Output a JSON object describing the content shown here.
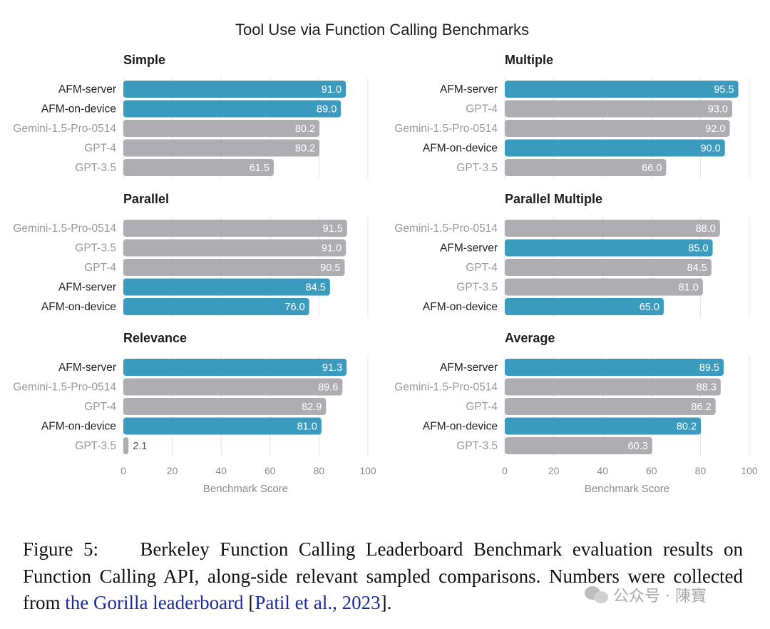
{
  "title": "Tool Use via Function Calling Benchmarks",
  "colors": {
    "afm": "#3b9bbf",
    "other": "#aeadb2",
    "grid": "#e4e4e6",
    "other_text": "#9a9a9e",
    "afm_text": "#222222"
  },
  "chart_data": [
    {
      "type": "bar",
      "orientation": "horizontal",
      "title": "Simple",
      "categories": [
        "AFM-server",
        "AFM-on-device",
        "Gemini-1.5-Pro-0514",
        "GPT-4",
        "GPT-3.5"
      ],
      "values": [
        91.0,
        89.0,
        80.2,
        80.2,
        61.5
      ],
      "value_labels": [
        "91.0",
        "89.0",
        "80.2",
        "80.2",
        "61.5"
      ],
      "highlight": [
        true,
        true,
        false,
        false,
        false
      ],
      "xlim": [
        0,
        100
      ],
      "xlabel": ""
    },
    {
      "type": "bar",
      "orientation": "horizontal",
      "title": "Multiple",
      "categories": [
        "AFM-server",
        "GPT-4",
        "Gemini-1.5-Pro-0514",
        "AFM-on-device",
        "GPT-3.5"
      ],
      "values": [
        95.5,
        93.0,
        92.0,
        90.0,
        66.0
      ],
      "value_labels": [
        "95.5",
        "93.0",
        "92.0",
        "90.0",
        "66.0"
      ],
      "highlight": [
        true,
        false,
        false,
        true,
        false
      ],
      "xlim": [
        0,
        100
      ],
      "xlabel": ""
    },
    {
      "type": "bar",
      "orientation": "horizontal",
      "title": "Parallel",
      "categories": [
        "Gemini-1.5-Pro-0514",
        "GPT-3.5",
        "GPT-4",
        "AFM-server",
        "AFM-on-device"
      ],
      "values": [
        91.5,
        91.0,
        90.5,
        84.5,
        76.0
      ],
      "value_labels": [
        "91.5",
        "91.0",
        "90.5",
        "84.5",
        "76.0"
      ],
      "highlight": [
        false,
        false,
        false,
        true,
        true
      ],
      "xlim": [
        0,
        100
      ],
      "xlabel": ""
    },
    {
      "type": "bar",
      "orientation": "horizontal",
      "title": "Parallel Multiple",
      "categories": [
        "Gemini-1.5-Pro-0514",
        "AFM-server",
        "GPT-4",
        "GPT-3.5",
        "AFM-on-device"
      ],
      "values": [
        88.0,
        85.0,
        84.5,
        81.0,
        65.0
      ],
      "value_labels": [
        "88.0",
        "85.0",
        "84.5",
        "81.0",
        "65.0"
      ],
      "highlight": [
        false,
        true,
        false,
        false,
        true
      ],
      "xlim": [
        0,
        100
      ],
      "xlabel": ""
    },
    {
      "type": "bar",
      "orientation": "horizontal",
      "title": "Relevance",
      "categories": [
        "AFM-server",
        "Gemini-1.5-Pro-0514",
        "GPT-4",
        "AFM-on-device",
        "GPT-3.5"
      ],
      "values": [
        91.3,
        89.6,
        82.9,
        81.0,
        2.1
      ],
      "value_labels": [
        "91.3",
        "89.6",
        "82.9",
        "81.0",
        "2.1"
      ],
      "highlight": [
        true,
        false,
        false,
        true,
        false
      ],
      "xlim": [
        0,
        100
      ],
      "xticks": [
        "0",
        "20",
        "40",
        "60",
        "80",
        "100"
      ],
      "xlabel": "Benchmark Score"
    },
    {
      "type": "bar",
      "orientation": "horizontal",
      "title": "Average",
      "categories": [
        "AFM-server",
        "Gemini-1.5-Pro-0514",
        "GPT-4",
        "AFM-on-device",
        "GPT-3.5"
      ],
      "values": [
        89.5,
        88.3,
        86.2,
        80.2,
        60.3
      ],
      "value_labels": [
        "89.5",
        "88.3",
        "86.2",
        "80.2",
        "60.3"
      ],
      "highlight": [
        true,
        false,
        false,
        true,
        false
      ],
      "xlim": [
        0,
        100
      ],
      "xticks": [
        "0",
        "20",
        "40",
        "60",
        "80",
        "100"
      ],
      "xlabel": "Benchmark Score"
    }
  ],
  "caption": {
    "prefix": "Figure 5:",
    "text_1": "Berkeley Function Calling Leaderboard Benchmark evaluation results on Function Calling API, along-side relevant sampled comparisons. Numbers were collected from ",
    "link_1": "the Gorilla leaderboard",
    "text_2": " [",
    "link_2": "Patil et al., 2023",
    "text_3": "]."
  },
  "watermark": {
    "text": "公众号 · 陳寶"
  }
}
